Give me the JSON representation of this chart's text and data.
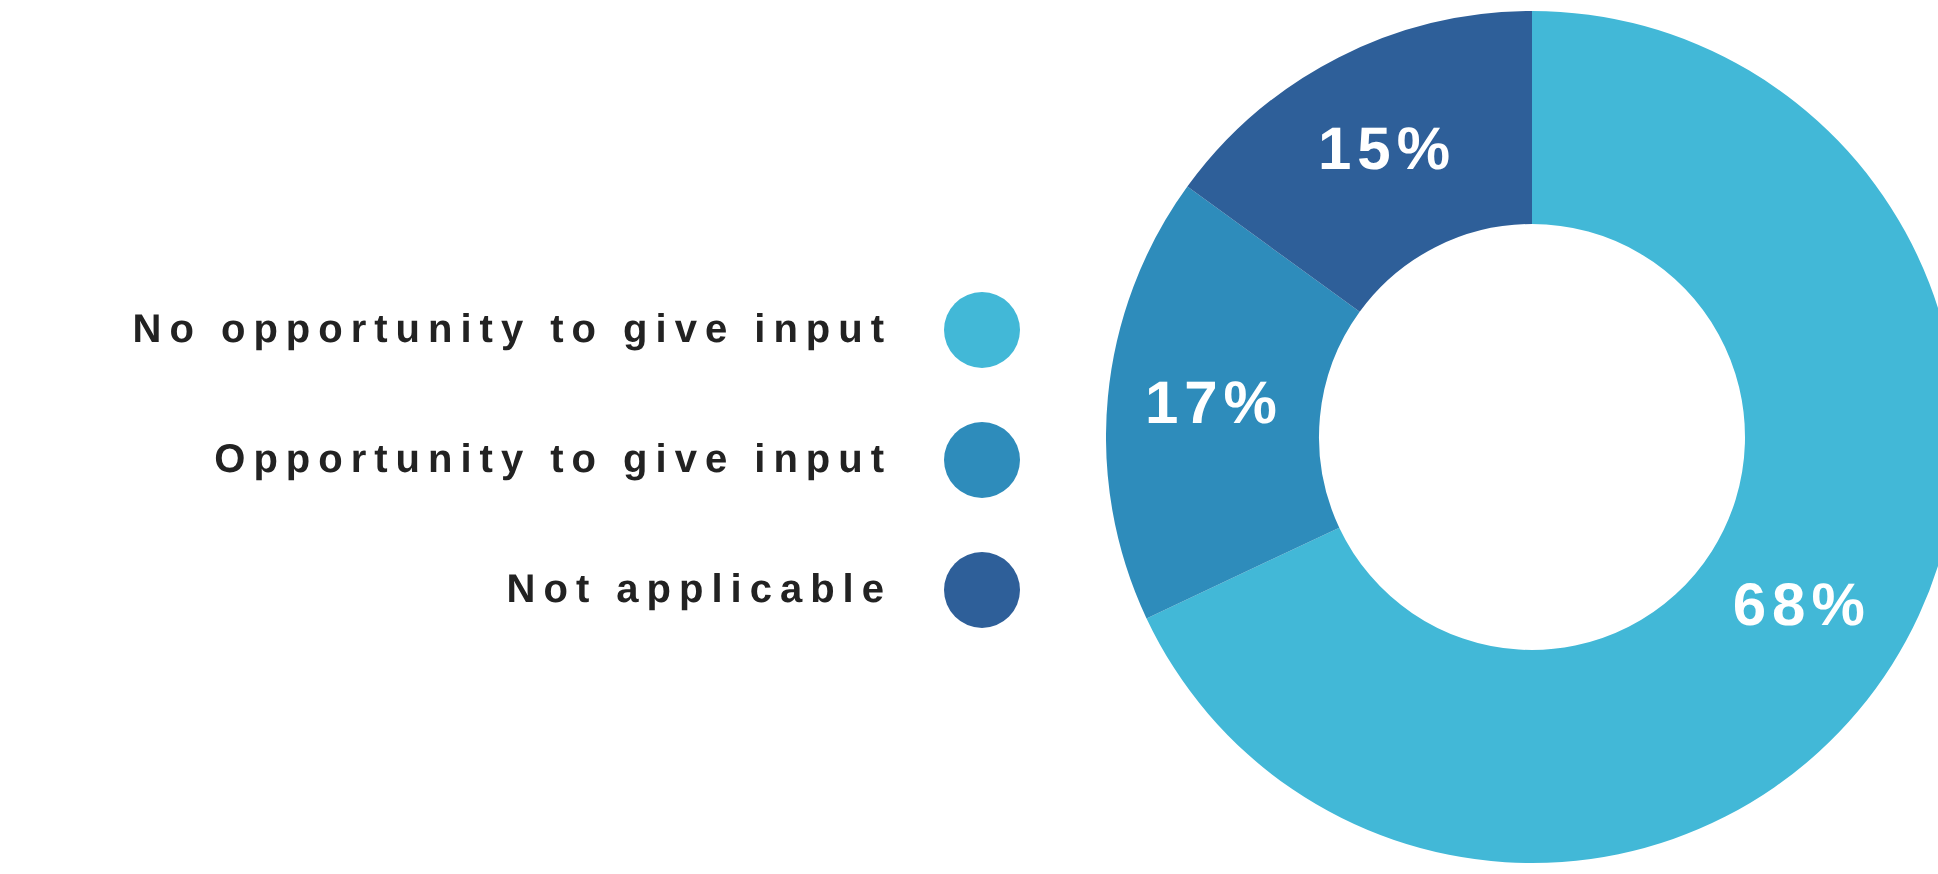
{
  "chart_data": {
    "type": "donut",
    "categories": [
      "No opportunity to give input",
      "Opportunity to give input",
      "Not applicable"
    ],
    "values": [
      68,
      17,
      15
    ],
    "colors": [
      "#42b8d7",
      "#2e8cbb",
      "#2e5f99"
    ],
    "value_labels": [
      "68%",
      "17%",
      "15%"
    ],
    "legend": "left"
  }
}
